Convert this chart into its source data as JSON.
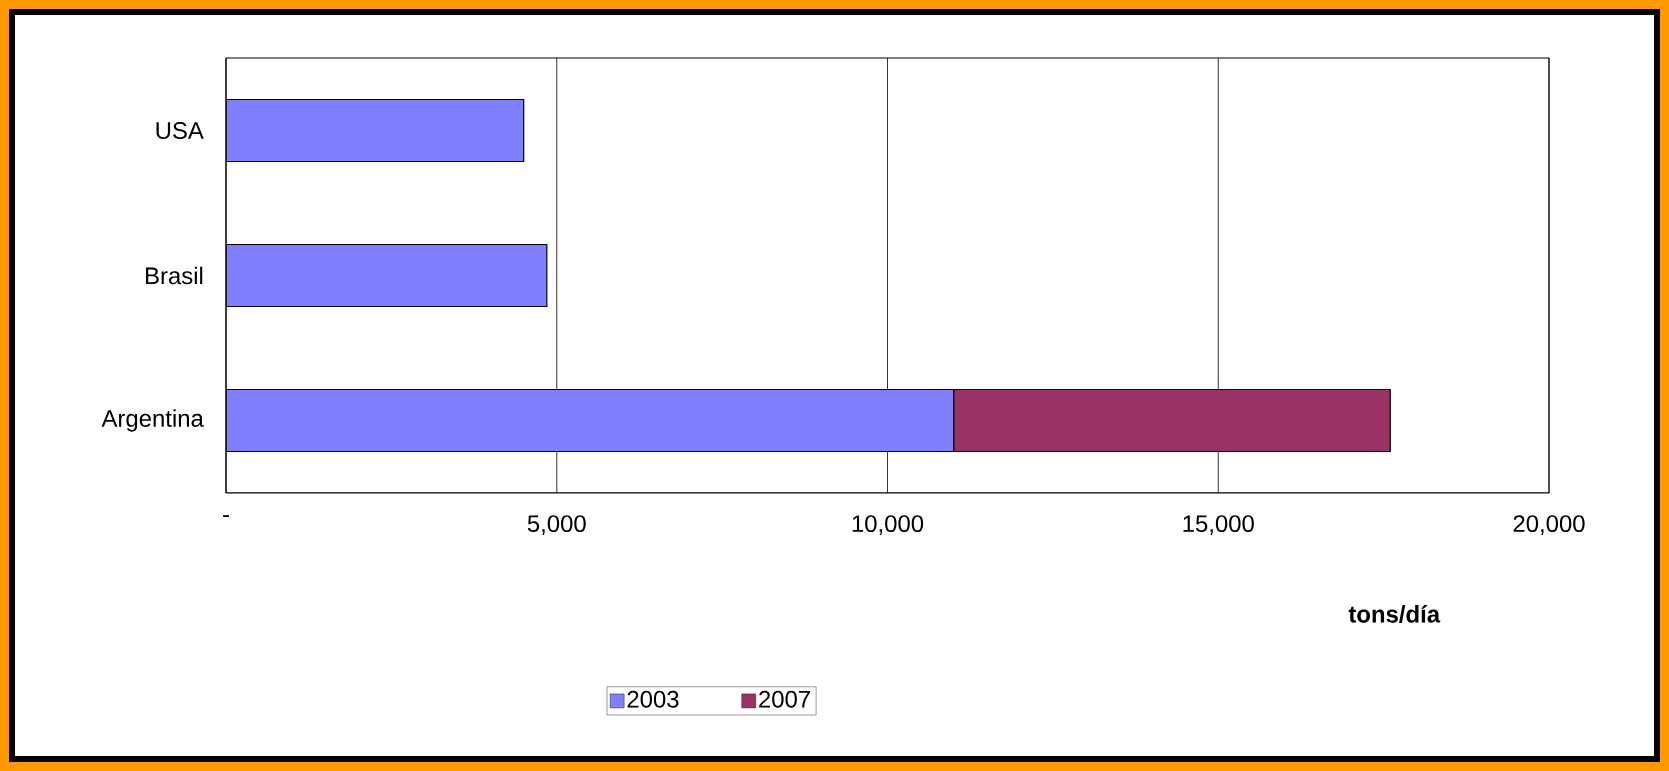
{
  "chart_data": {
    "type": "bar",
    "orientation": "horizontal",
    "stacked": true,
    "categories": [
      "USA",
      "Brasil",
      "Argentina"
    ],
    "series": [
      {
        "name": "2003",
        "color": "#8080ff",
        "values": [
          4500,
          4850,
          11000
        ]
      },
      {
        "name": "2007",
        "color": "#993366",
        "values": [
          null,
          null,
          6600
        ]
      }
    ],
    "xlim": [
      0,
      20000
    ],
    "xticks": [
      {
        "value": 0,
        "label": "-"
      },
      {
        "value": 5000,
        "label": "5,000"
      },
      {
        "value": 10000,
        "label": "10,000"
      },
      {
        "value": 15000,
        "label": "15,000"
      },
      {
        "value": 20000,
        "label": "20,000"
      }
    ],
    "xlabel": "tons/día",
    "grid": "x",
    "legend": "bottom"
  }
}
